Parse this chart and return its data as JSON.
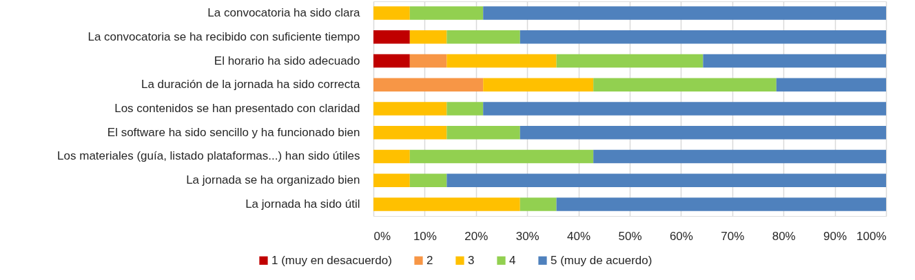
{
  "chart_data": {
    "type": "bar",
    "orientation": "horizontal",
    "stacked": true,
    "categories": [
      "La convocatoria ha sido clara",
      "La convocatoria se ha recibido con suficiente tiempo",
      "El horario ha sido adecuado",
      "La duración de la jornada ha sido correcta",
      "Los contenidos se han presentado con claridad",
      "El software ha sido sencillo y ha funcionado bien",
      "Los materiales (guía, listado plataformas...) han sido útiles",
      "La jornada se ha organizado bien",
      "La jornada ha sido útil"
    ],
    "series": [
      {
        "name": "1 (muy en desacuerdo)",
        "color": "#c00000",
        "values": [
          null,
          7.1,
          7.1,
          null,
          null,
          null,
          null,
          null,
          null
        ]
      },
      {
        "name": "2",
        "color": "#f79646",
        "values": [
          null,
          null,
          7.2,
          21.4,
          null,
          null,
          null,
          null,
          null
        ]
      },
      {
        "name": "3",
        "color": "#ffc000",
        "values": [
          7.1,
          7.2,
          21.4,
          21.5,
          14.3,
          14.3,
          7.1,
          7.1,
          28.6
        ]
      },
      {
        "name": "4",
        "color": "#92d050",
        "values": [
          14.3,
          14.3,
          28.6,
          35.7,
          7.1,
          14.3,
          35.8,
          7.2,
          7.1
        ]
      },
      {
        "name": "5 (muy de acuerdo)",
        "color": "#4f81bd",
        "values": [
          78.6,
          71.4,
          35.7,
          21.4,
          78.6,
          71.4,
          57.1,
          85.7,
          64.3
        ]
      }
    ],
    "xlim": [
      0,
      100
    ],
    "xticks": [
      {
        "value": 0,
        "label": "0%"
      },
      {
        "value": 10,
        "label": "10%"
      },
      {
        "value": 20,
        "label": "20%"
      },
      {
        "value": 30,
        "label": "30%"
      },
      {
        "value": 40,
        "label": "40%"
      },
      {
        "value": 50,
        "label": "50%"
      },
      {
        "value": 60,
        "label": "60%"
      },
      {
        "value": 70,
        "label": "70%"
      },
      {
        "value": 80,
        "label": "80%"
      },
      {
        "value": 90,
        "label": "90%"
      },
      {
        "value": 100,
        "label": "100%"
      }
    ],
    "grid": "x",
    "legend": "bottom"
  }
}
